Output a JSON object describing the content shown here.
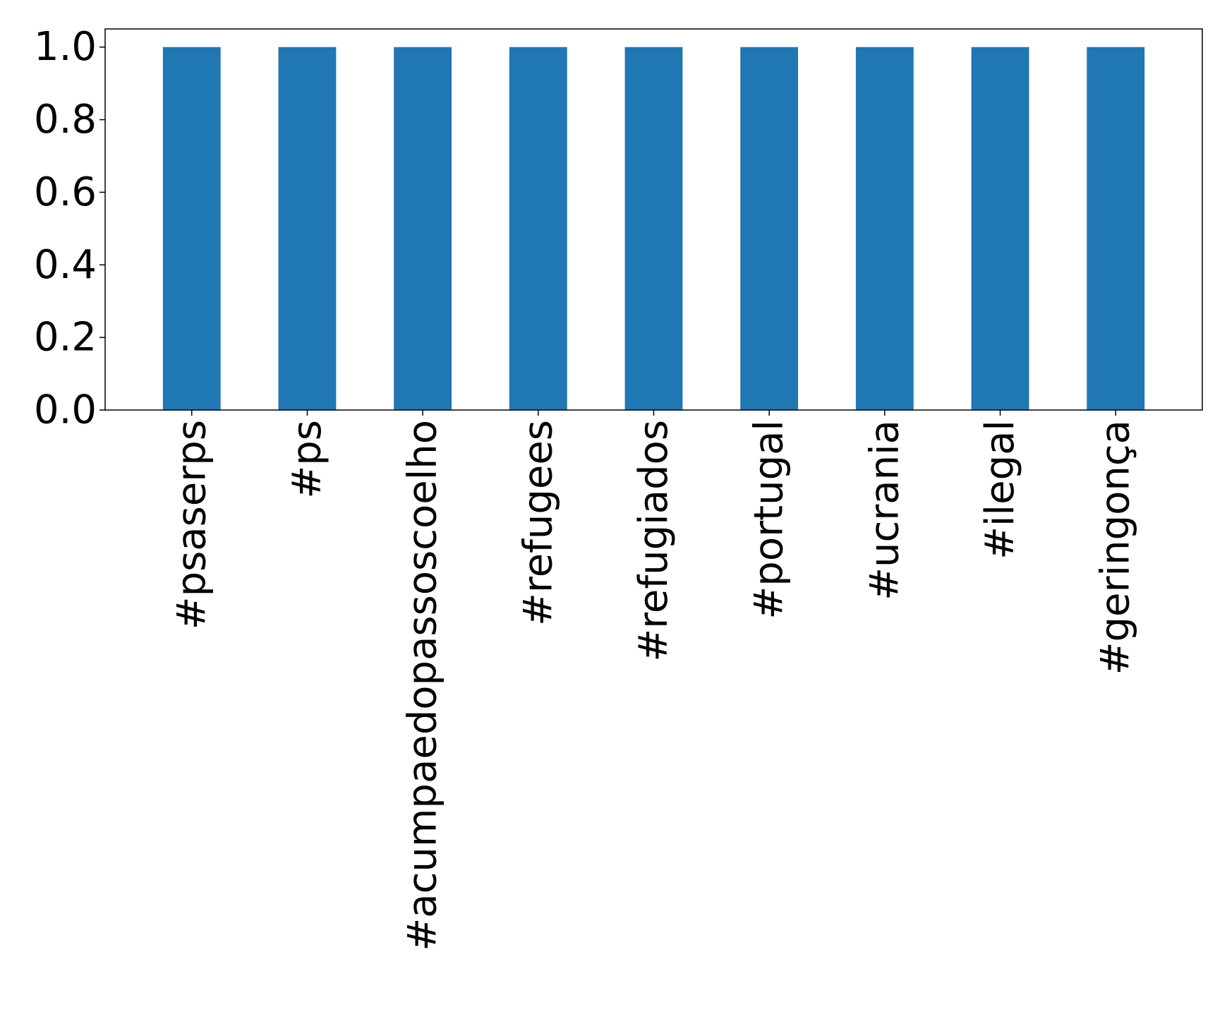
{
  "chart_data": {
    "type": "bar",
    "title": "",
    "xlabel": "",
    "ylabel": "",
    "categories": [
      "#psaserps",
      "#ps",
      "#acumpaedopassoscoelho",
      "#refugees",
      "#refugiados",
      "#portugal",
      "#ucrania",
      "#ilegal",
      "#geringonça"
    ],
    "values": [
      1.0,
      1.0,
      1.0,
      1.0,
      1.0,
      1.0,
      1.0,
      1.0,
      1.0
    ],
    "ylim": [
      0,
      1.05
    ],
    "yticks": [
      0.0,
      0.2,
      0.4,
      0.6,
      0.8,
      1.0
    ],
    "ytick_labels": [
      "0.0",
      "0.2",
      "0.4",
      "0.6",
      "0.8",
      "1.0"
    ],
    "grid": false,
    "legend": "none",
    "bar_color": "#1f77b4"
  }
}
